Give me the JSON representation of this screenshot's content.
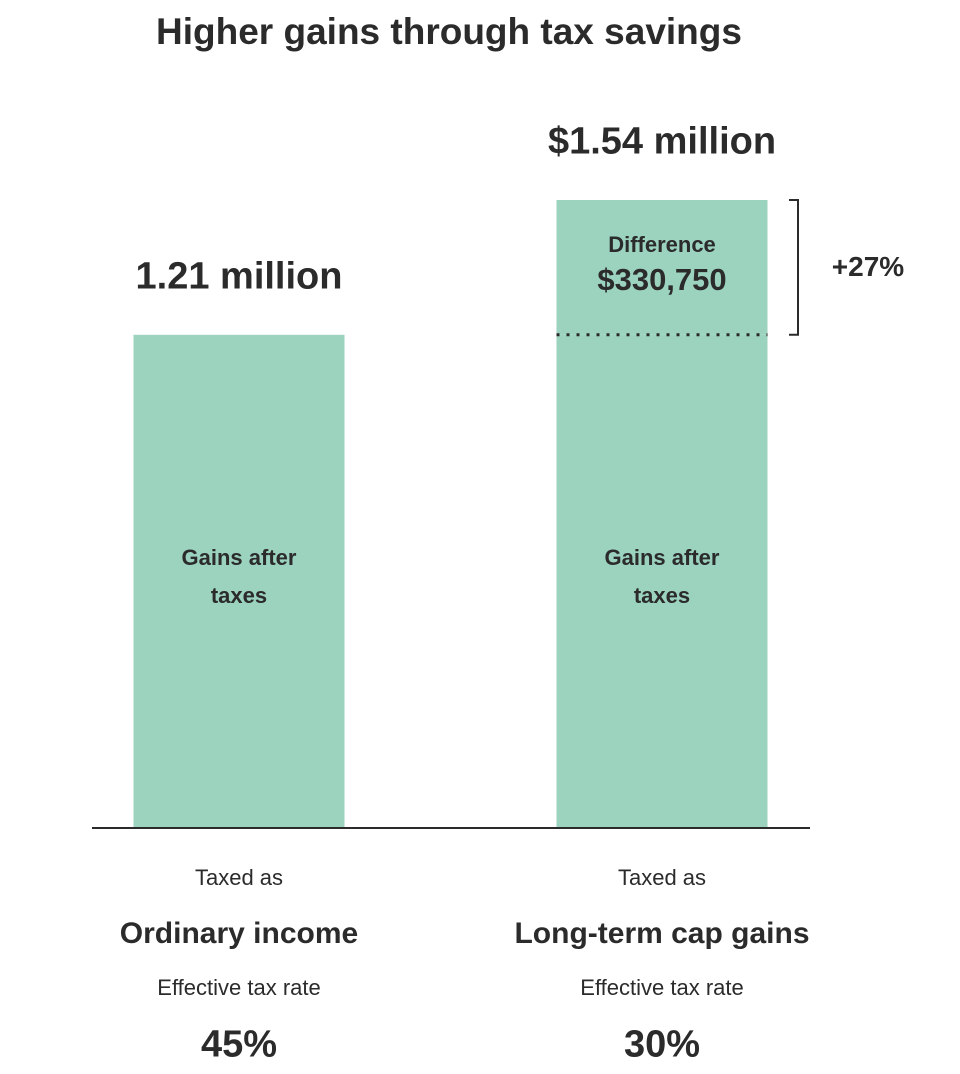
{
  "chart_data": {
    "type": "stacked-bar",
    "title": "Higher gains through tax savings",
    "categories": [
      "Ordinary income",
      "Long-term cap gains"
    ],
    "category_caption": "Taxed as",
    "series": [
      {
        "name": "Gains after taxes",
        "color": "#9bd3bf",
        "values": [
          1.21,
          1.21
        ]
      },
      {
        "name": "Difference",
        "color": "#9bd3bf",
        "values": [
          null,
          0.33075
        ],
        "value_labels": [
          null,
          "$330,750"
        ]
      }
    ],
    "totals": {
      "values": [
        1.21,
        1.54
      ],
      "labels": [
        "1.21 million",
        "$1.54 million"
      ]
    },
    "difference_annotation": {
      "value": 27,
      "label": "+27%"
    },
    "rate_caption": "Effective tax rate",
    "rates": {
      "values": [
        45,
        30
      ],
      "labels": [
        "45%",
        "30%"
      ]
    }
  }
}
